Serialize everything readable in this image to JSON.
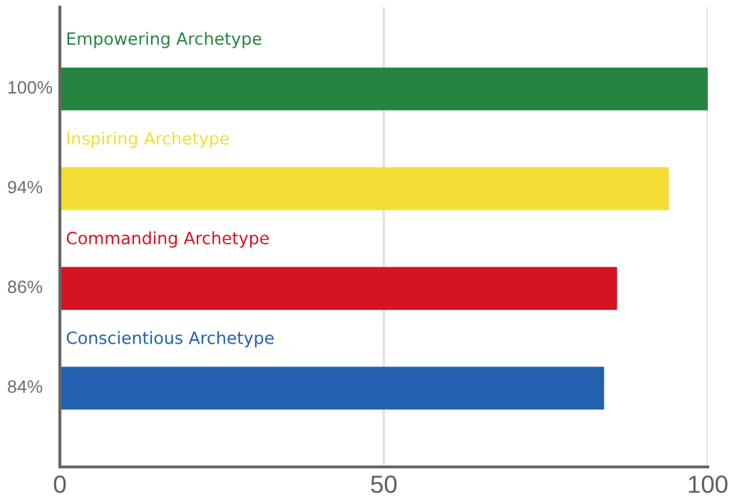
{
  "chart_data": {
    "type": "bar",
    "orientation": "horizontal",
    "categories": [
      "Empowering Archetype",
      "Inspiring Archetype",
      "Commanding Archetype",
      "Conscientious Archetype"
    ],
    "values": [
      100,
      94,
      86,
      84
    ],
    "value_labels": [
      "100%",
      "94%",
      "86%",
      "84%"
    ],
    "colors": [
      "#25843f",
      "#f4dc34",
      "#d41420",
      "#2360ad"
    ],
    "xlim": [
      0,
      100
    ],
    "xticks": [
      0,
      50,
      100
    ],
    "grid": "x"
  }
}
